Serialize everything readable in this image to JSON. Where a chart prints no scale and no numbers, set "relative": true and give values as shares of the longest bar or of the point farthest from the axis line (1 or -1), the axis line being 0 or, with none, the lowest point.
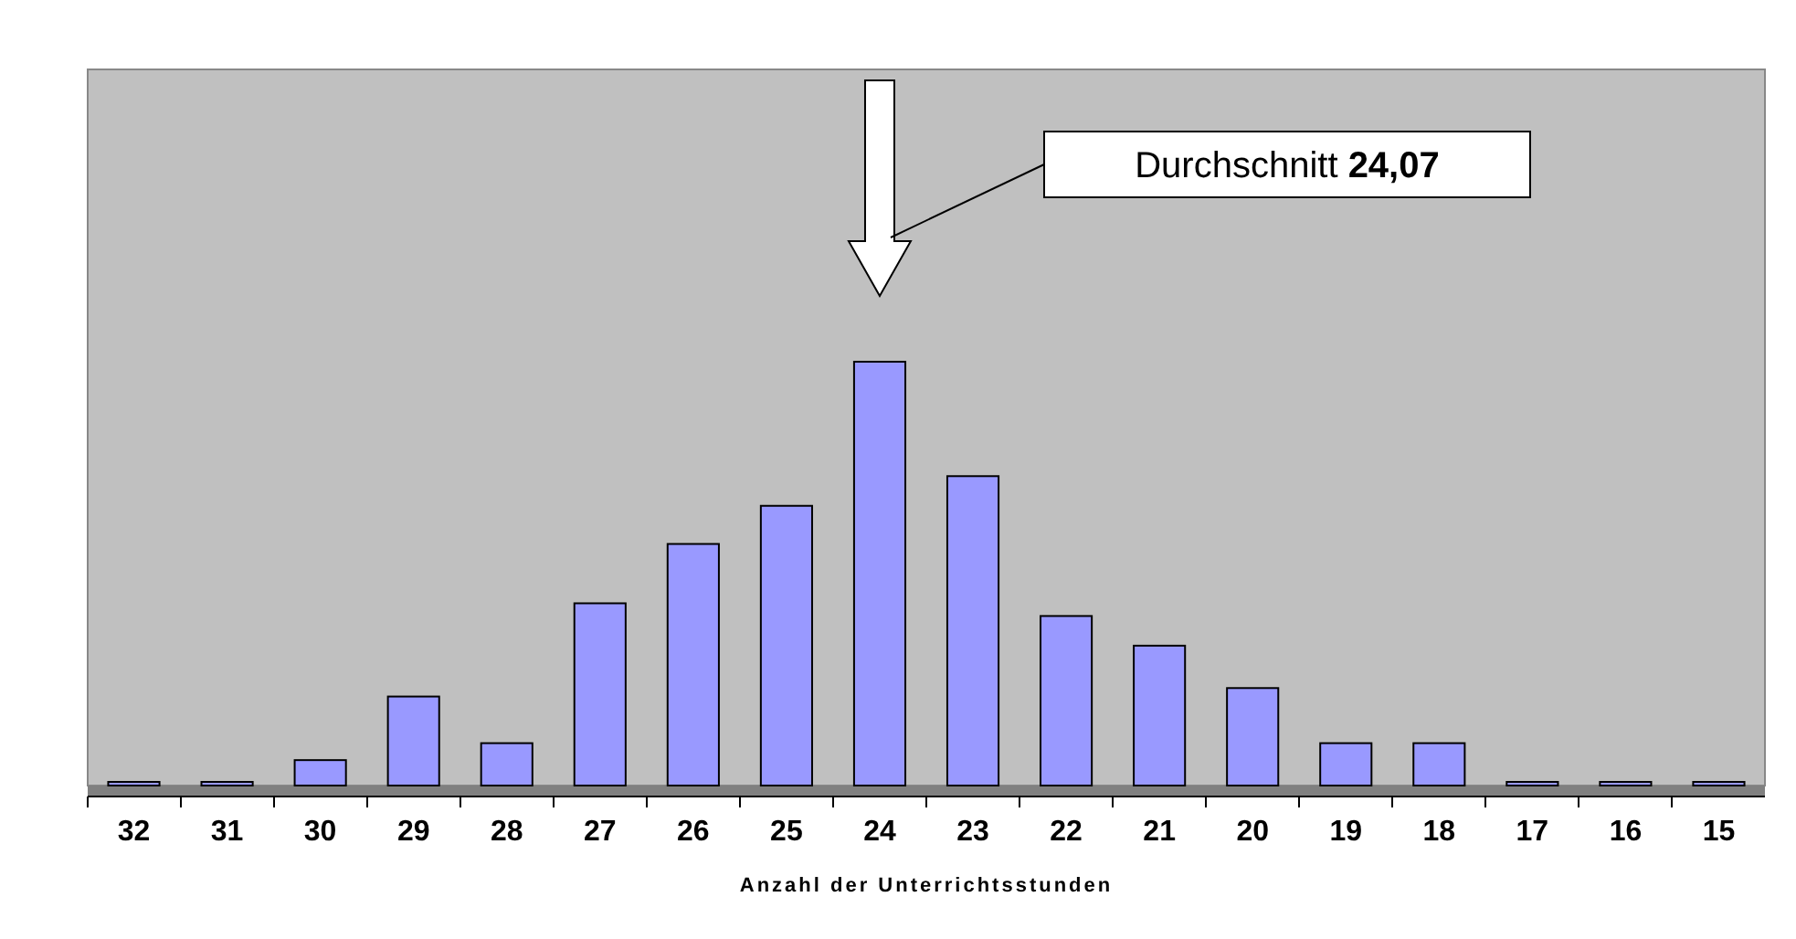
{
  "chart_data": {
    "type": "bar",
    "relative": true,
    "xlabel": "Anzahl der Unterrichtsstunden",
    "categories": [
      "32",
      "31",
      "30",
      "29",
      "28",
      "27",
      "26",
      "25",
      "24",
      "23",
      "22",
      "21",
      "20",
      "19",
      "18",
      "17",
      "16",
      "15"
    ],
    "values": [
      0,
      0,
      0.06,
      0.21,
      0.1,
      0.43,
      0.57,
      0.66,
      1,
      0.73,
      0.4,
      0.33,
      0.23,
      0.1,
      0.1,
      0,
      0,
      0
    ],
    "color": "#9999ff",
    "annotations": [
      "Durchschnitt 24,07"
    ]
  }
}
